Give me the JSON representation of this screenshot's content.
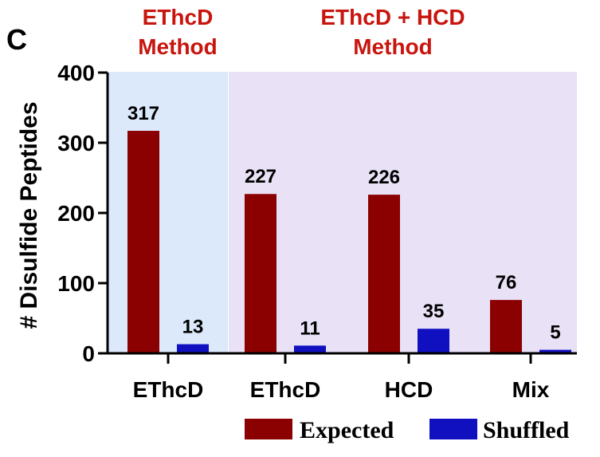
{
  "panel_label": "C",
  "group_headers": [
    {
      "line1": "EThcD",
      "line2": "Method"
    },
    {
      "line1": "EThcD + HCD",
      "line2": "Method"
    }
  ],
  "colors": {
    "expected": "#8b0000",
    "shuffled": "#1010c0",
    "header_text": "#c8150e",
    "region1_bg": "#dbe9fb",
    "region2_bg": "#e9e1f6",
    "axis": "#000000"
  },
  "chart_data": {
    "type": "bar",
    "ylabel": "# Disulfide Peptides",
    "xlabel": "",
    "ylim": [
      0,
      400
    ],
    "yticks": [
      0,
      100,
      200,
      300,
      400
    ],
    "categories": [
      "EThcD",
      "EThcD",
      "HCD",
      "Mix"
    ],
    "series": [
      {
        "name": "Expected",
        "values": [
          317,
          227,
          226,
          76
        ]
      },
      {
        "name": "Shuffled",
        "values": [
          13,
          11,
          35,
          5
        ]
      }
    ],
    "legend_position": "bottom-right",
    "grid": false
  }
}
